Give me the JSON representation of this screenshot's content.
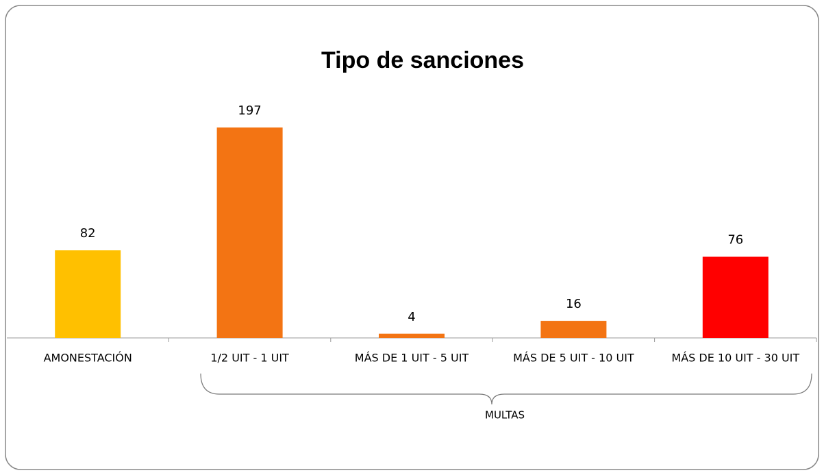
{
  "chart_data": {
    "type": "bar",
    "title": "Tipo de sanciones",
    "categories": [
      "AMONESTACIÓN",
      "1/2 UIT - 1 UIT",
      "MÁS DE 1 UIT - 5 UIT",
      "MÁS DE 5 UIT - 10 UIT",
      "MÁS DE 10 UIT - 30 UIT"
    ],
    "values": [
      82,
      197,
      4,
      16,
      76
    ],
    "colors": [
      "#FFC000",
      "#F37413",
      "#F37413",
      "#F37413",
      "#FF0000"
    ],
    "annotation": "MULTAS"
  }
}
